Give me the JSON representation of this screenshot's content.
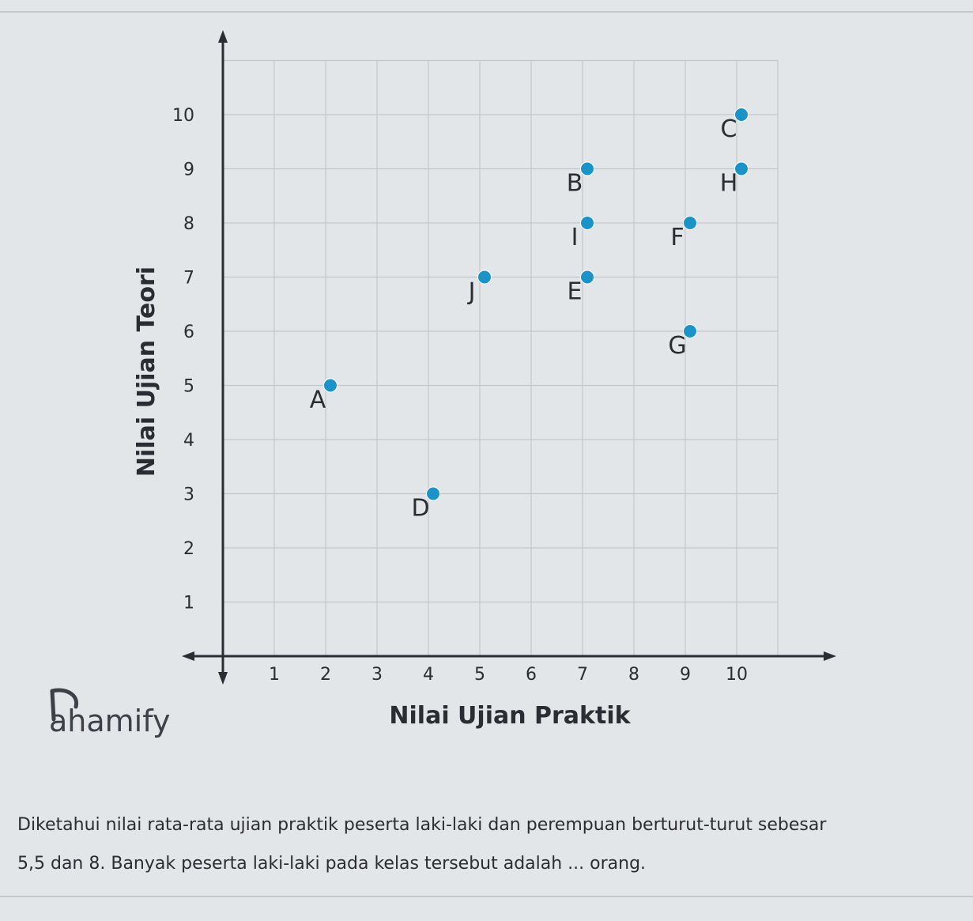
{
  "brand": {
    "name": "ahamify",
    "icon": "pahamify-logo-icon"
  },
  "chart_data": {
    "type": "scatter",
    "title": "",
    "xlabel": "Nilai Ujian Praktik",
    "ylabel": "Nilai Ujian Teori",
    "xlim": [
      0,
      10.8
    ],
    "ylim": [
      0,
      11
    ],
    "x_ticks": [
      "1",
      "2",
      "3",
      "4",
      "5",
      "6",
      "7",
      "8",
      "9",
      "10"
    ],
    "y_ticks": [
      "1",
      "2",
      "3",
      "4",
      "5",
      "6",
      "7",
      "8",
      "9",
      "10"
    ],
    "grid": true,
    "point_color": "#1a93c8",
    "points": [
      {
        "label": "A",
        "x": 2,
        "y": 5
      },
      {
        "label": "B",
        "x": 7,
        "y": 9
      },
      {
        "label": "C",
        "x": 10,
        "y": 10
      },
      {
        "label": "D",
        "x": 4,
        "y": 3
      },
      {
        "label": "E",
        "x": 7,
        "y": 7
      },
      {
        "label": "F",
        "x": 9,
        "y": 8
      },
      {
        "label": "G",
        "x": 9,
        "y": 6
      },
      {
        "label": "H",
        "x": 10,
        "y": 9
      },
      {
        "label": "I",
        "x": 7,
        "y": 8
      },
      {
        "label": "J",
        "x": 5,
        "y": 7
      }
    ]
  },
  "question": {
    "line1": "Diketahui nilai rata-rata ujian praktik peserta laki-laki dan perempuan berturut-turut sebesar",
    "line2": "5,5 dan 8. Banyak peserta laki-laki pada kelas tersebut adalah ... orang."
  }
}
